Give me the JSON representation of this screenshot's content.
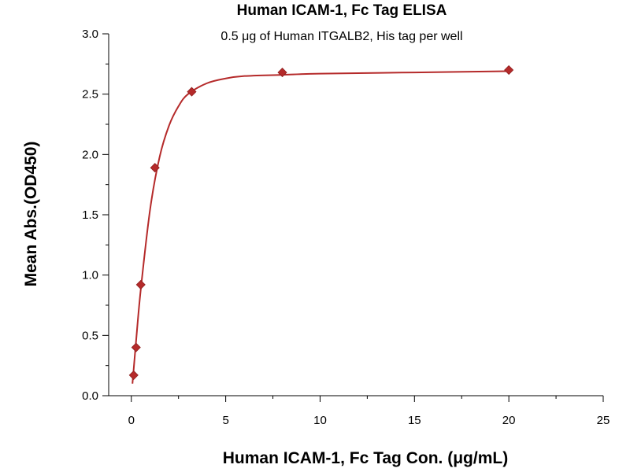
{
  "chart_data": {
    "type": "scatter",
    "title": "Human ICAM-1, Fc Tag ELISA",
    "subtitle": "0.5 μg of Human ITGALB2, His tag per well",
    "xlabel": "Human ICAM-1, Fc Tag Con. (μg/mL)",
    "ylabel": "Mean Abs.(OD450)",
    "xlim": [
      -1.2,
      25
    ],
    "ylim": [
      0,
      3.0
    ],
    "x_ticks": [
      0,
      5,
      10,
      15,
      20,
      25
    ],
    "y_ticks": [
      0.0,
      0.5,
      1.0,
      1.5,
      2.0,
      2.5,
      3.0
    ],
    "x_tick_labels": [
      "0",
      "5",
      "10",
      "15",
      "20",
      "25"
    ],
    "y_tick_labels": [
      "0.0",
      "0.5",
      "1.0",
      "1.5",
      "2.0",
      "2.5",
      "3.0"
    ],
    "grid": false,
    "legend": "none",
    "series": [
      {
        "marker": "diamond",
        "color": "#b52a2a",
        "points": [
          {
            "x": 0.125,
            "y": 0.17
          },
          {
            "x": 0.25,
            "y": 0.4
          },
          {
            "x": 0.5,
            "y": 0.92
          },
          {
            "x": 1.25,
            "y": 1.89
          },
          {
            "x": 3.2,
            "y": 2.52
          },
          {
            "x": 8.0,
            "y": 2.68
          },
          {
            "x": 20.0,
            "y": 2.7
          }
        ],
        "fit_curve": [
          {
            "x": 0.06,
            "y": 0.1
          },
          {
            "x": 0.25,
            "y": 0.45
          },
          {
            "x": 0.5,
            "y": 0.88
          },
          {
            "x": 1.0,
            "y": 1.55
          },
          {
            "x": 1.5,
            "y": 1.98
          },
          {
            "x": 2.0,
            "y": 2.24
          },
          {
            "x": 2.5,
            "y": 2.4
          },
          {
            "x": 3.0,
            "y": 2.5
          },
          {
            "x": 4.0,
            "y": 2.59
          },
          {
            "x": 5.0,
            "y": 2.63
          },
          {
            "x": 6.0,
            "y": 2.65
          },
          {
            "x": 8.0,
            "y": 2.66
          },
          {
            "x": 10.0,
            "y": 2.67
          },
          {
            "x": 15.0,
            "y": 2.68
          },
          {
            "x": 20.0,
            "y": 2.69
          }
        ]
      }
    ]
  }
}
